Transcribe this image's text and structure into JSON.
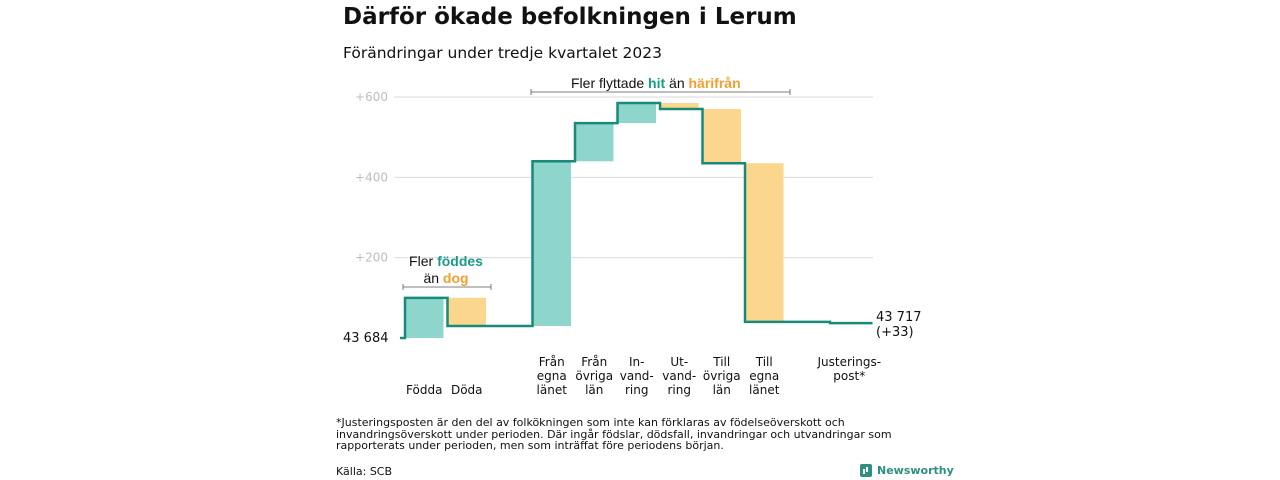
{
  "title": "Därför ökade befolkningen i Lerum",
  "subtitle": "Förändringar under tredje kvartalet 2023",
  "annotations": {
    "group1_prefix": "Fler",
    "group1_green": "föddes",
    "group1_mid": "än",
    "group1_orange": "dog",
    "group2_prefix": "Fler flyttade",
    "group2_green": "hit",
    "group2_mid": "än",
    "group2_orange": "härifrån"
  },
  "footnote": "*Justeringsposten är den del av folkökningen som inte kan förklaras av födelseöverskott och invandringsöverskott under perioden. Där ingår födslar, dödsfall, invandringar och utvandringar som rapporterats under perioden, men som inträffat före periodens början.",
  "source": "Källa: SCB",
  "brand": "Newsworthy",
  "colors": {
    "increase": "#8ed5cc",
    "decrease": "#fbd68d",
    "line": "#178a7a",
    "grid": "#d9d9d9",
    "tick": "#bdbdbd"
  },
  "chart_data": {
    "type": "waterfall",
    "start_label": "43 684",
    "end_label": [
      "43 717",
      "(+33)"
    ],
    "start_value": 0,
    "ylim": [
      0,
      600
    ],
    "ytick_values": [
      200,
      400,
      600
    ],
    "ytick_labels": [
      "+200",
      "+400",
      "+600"
    ],
    "grid": true,
    "steps": [
      {
        "label": [
          "Födda"
        ],
        "delta": 100,
        "kind": "increase"
      },
      {
        "label": [
          "Döda"
        ],
        "delta": -70,
        "kind": "decrease"
      },
      {
        "label": [
          ""
        ],
        "delta": 0,
        "kind": "gap"
      },
      {
        "label": [
          "Från",
          "egna",
          "länet"
        ],
        "delta": 410,
        "kind": "increase"
      },
      {
        "label": [
          "Från",
          "övriga",
          "län"
        ],
        "delta": 95,
        "kind": "increase"
      },
      {
        "label": [
          "In-",
          "vand-",
          "ring"
        ],
        "delta": 50,
        "kind": "increase"
      },
      {
        "label": [
          "Ut-",
          "vand-",
          "ring"
        ],
        "delta": -15,
        "kind": "decrease"
      },
      {
        "label": [
          "Till",
          "övriga",
          "län"
        ],
        "delta": -135,
        "kind": "decrease"
      },
      {
        "label": [
          "Till",
          "egna",
          "länet"
        ],
        "delta": -395,
        "kind": "decrease"
      },
      {
        "label": [
          ""
        ],
        "delta": 0,
        "kind": "gap"
      },
      {
        "label": [
          "Justerings-",
          "post*"
        ],
        "delta": -3,
        "kind": "decrease"
      }
    ]
  }
}
